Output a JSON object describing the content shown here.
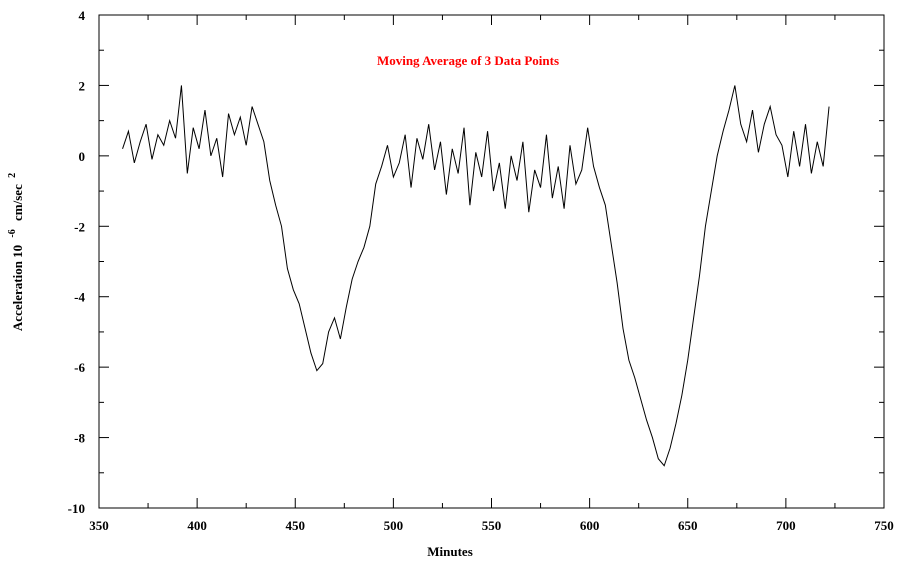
{
  "chart_data": {
    "type": "line",
    "title": "",
    "annotation": "Moving Average of  3 Data Points",
    "annotation_color": "#ff0000",
    "xlabel": "Minutes",
    "ylabel_main": "Acceleration 10",
    "ylabel_sup1": "-6",
    "ylabel_mid": "cm/sec",
    "ylabel_sup2": "2",
    "xlim": [
      350,
      750
    ],
    "ylim": [
      -10,
      4
    ],
    "xticks": [
      "350",
      "400",
      "450",
      "500",
      "550",
      "600",
      "650",
      "700",
      "750"
    ],
    "yticks": [
      "4",
      "2",
      "0",
      "-2",
      "-4",
      "-6",
      "-8",
      "-10"
    ],
    "grid": false,
    "line_color": "#000000",
    "series": [
      {
        "x": [
          362,
          365,
          368,
          371,
          374,
          377,
          380,
          383,
          386,
          389,
          392,
          395,
          398,
          401,
          404,
          407,
          410,
          413,
          416,
          419,
          422,
          425,
          428,
          431,
          434,
          437,
          440,
          443,
          446,
          449,
          452,
          455,
          458,
          461,
          464,
          467,
          470,
          473,
          476,
          479,
          482,
          485,
          488,
          491,
          494,
          497,
          500,
          503,
          506,
          509,
          512,
          515,
          518,
          521,
          524,
          527,
          530,
          533,
          536,
          539,
          542,
          545,
          548,
          551,
          554,
          557,
          560,
          563,
          566,
          569,
          572,
          575,
          578,
          581,
          584,
          587,
          590,
          593,
          596,
          599,
          602,
          605,
          608,
          611,
          614,
          617,
          620,
          623,
          626,
          629,
          632,
          635,
          638,
          641,
          644,
          647,
          650,
          653,
          656,
          659,
          662,
          665,
          668,
          671,
          674,
          677,
          680,
          683,
          686,
          689,
          692,
          695,
          698,
          701,
          704,
          707,
          710,
          713,
          716,
          719,
          722
        ],
        "y": [
          0.2,
          0.7,
          -0.2,
          0.4,
          0.9,
          -0.1,
          0.6,
          0.3,
          1.0,
          0.5,
          2.0,
          -0.5,
          0.8,
          0.2,
          1.3,
          0.0,
          0.5,
          -0.6,
          1.2,
          0.6,
          1.1,
          0.3,
          1.4,
          0.9,
          0.4,
          -0.7,
          -1.4,
          -2.0,
          -3.2,
          -3.8,
          -4.2,
          -4.9,
          -5.6,
          -6.1,
          -5.9,
          -5.0,
          -4.6,
          -5.2,
          -4.3,
          -3.5,
          -3.0,
          -2.6,
          -2.0,
          -0.8,
          -0.3,
          0.3,
          -0.6,
          -0.2,
          0.6,
          -0.9,
          0.5,
          -0.1,
          0.9,
          -0.4,
          0.4,
          -1.1,
          0.2,
          -0.5,
          0.8,
          -1.4,
          0.1,
          -0.6,
          0.7,
          -1.0,
          -0.2,
          -1.5,
          0.0,
          -0.7,
          0.4,
          -1.6,
          -0.4,
          -0.9,
          0.6,
          -1.2,
          -0.3,
          -1.5,
          0.3,
          -0.8,
          -0.4,
          0.8,
          -0.3,
          -0.9,
          -1.4,
          -2.5,
          -3.6,
          -4.9,
          -5.8,
          -6.3,
          -6.9,
          -7.5,
          -8.0,
          -8.6,
          -8.8,
          -8.3,
          -7.6,
          -6.8,
          -5.8,
          -4.6,
          -3.4,
          -2.0,
          -1.0,
          0.0,
          0.7,
          1.3,
          2.0,
          0.9,
          0.4,
          1.3,
          0.1,
          0.9,
          1.4,
          0.6,
          0.3,
          -0.6,
          0.7,
          -0.3,
          0.9,
          -0.5,
          0.4,
          -0.3,
          1.4
        ]
      }
    ]
  }
}
